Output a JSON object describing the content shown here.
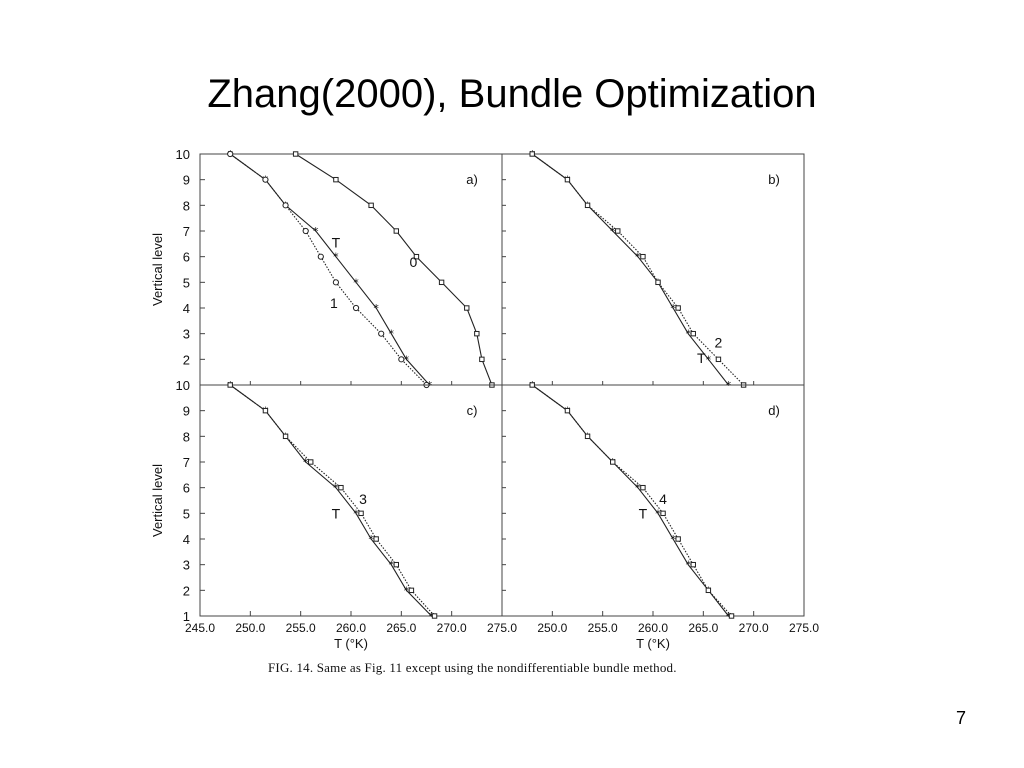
{
  "slide": {
    "title": "Zhang(2000), Bundle Optimization",
    "caption": "FIG. 14. Same as Fig. 11 except using the nondifferentiable bundle method.",
    "page_number": "7"
  },
  "chart_data": [
    {
      "type": "line",
      "panel_label": "a)",
      "ylabel": "Vertical level",
      "xlim": [
        245.0,
        275.0
      ],
      "ylim": [
        2,
        10
      ],
      "y_ticks": [
        10,
        9,
        8,
        7,
        6,
        5,
        4,
        3,
        2
      ],
      "series": [
        {
          "name": "T",
          "marker": "star",
          "style": "solid",
          "x": [
            248.0,
            251.5,
            253.5,
            256.5,
            258.5,
            260.5,
            262.5,
            264.0,
            265.5,
            267.8
          ],
          "y": [
            10,
            9,
            8,
            7,
            6,
            5,
            4,
            3,
            2,
            1
          ]
        },
        {
          "name": "0",
          "marker": "square",
          "style": "solid",
          "x": [
            254.5,
            258.5,
            262.0,
            264.5,
            266.5,
            269.0,
            271.5,
            272.5,
            273.0,
            274.0
          ],
          "y": [
            10,
            9,
            8,
            7,
            6,
            5,
            4,
            3,
            2,
            1
          ]
        },
        {
          "name": "1",
          "marker": "circle",
          "style": "dotted",
          "x": [
            248.0,
            251.5,
            253.5,
            255.5,
            257.0,
            258.5,
            260.5,
            263.0,
            265.0,
            267.5
          ],
          "y": [
            10,
            9,
            8,
            7,
            6,
            5,
            4,
            3,
            2,
            1
          ]
        }
      ]
    },
    {
      "type": "line",
      "panel_label": "b)",
      "xlim": [
        245.0,
        275.0
      ],
      "ylim": [
        2,
        10
      ],
      "series": [
        {
          "name": "T",
          "marker": "star",
          "style": "solid",
          "x": [
            248.0,
            251.5,
            253.5,
            256.0,
            258.5,
            260.5,
            262.0,
            263.5,
            265.5,
            267.5
          ],
          "y": [
            10,
            9,
            8,
            7,
            6,
            5,
            4,
            3,
            2,
            1
          ]
        },
        {
          "name": "2",
          "marker": "square",
          "style": "dotted",
          "x": [
            248.0,
            251.5,
            253.5,
            256.5,
            259.0,
            260.5,
            262.5,
            264.0,
            266.5,
            269.0
          ],
          "y": [
            10,
            9,
            8,
            7,
            6,
            5,
            4,
            3,
            2,
            1
          ]
        }
      ]
    },
    {
      "type": "line",
      "panel_label": "c)",
      "xlabel": "T (°K)",
      "ylabel": "Vertical level",
      "xlim": [
        245.0,
        275.0
      ],
      "ylim": [
        1,
        10
      ],
      "y_ticks": [
        10,
        9,
        8,
        7,
        6,
        5,
        4,
        3,
        2,
        1
      ],
      "x_ticks": [
        "245.0",
        "250.0",
        "255.0",
        "260.0",
        "265.0",
        "270.0",
        "275.0"
      ],
      "series": [
        {
          "name": "T",
          "marker": "star",
          "style": "solid",
          "x": [
            248.0,
            251.5,
            253.5,
            255.5,
            258.5,
            260.5,
            262.0,
            264.0,
            265.5,
            268.0
          ],
          "y": [
            10,
            9,
            8,
            7,
            6,
            5,
            4,
            3,
            2,
            1
          ]
        },
        {
          "name": "3",
          "marker": "square",
          "style": "dotted",
          "x": [
            248.0,
            251.5,
            253.5,
            256.0,
            259.0,
            261.0,
            262.5,
            264.5,
            266.0,
            268.3
          ],
          "y": [
            10,
            9,
            8,
            7,
            6,
            5,
            4,
            3,
            2,
            1
          ]
        }
      ]
    },
    {
      "type": "line",
      "panel_label": "d)",
      "xlabel": "T (°K)",
      "xlim": [
        245.0,
        275.0
      ],
      "ylim": [
        1,
        10
      ],
      "x_ticks": [
        "250.0",
        "255.0",
        "260.0",
        "265.0",
        "270.0",
        "275.0"
      ],
      "series": [
        {
          "name": "T",
          "marker": "star",
          "style": "solid",
          "x": [
            248.0,
            251.5,
            253.5,
            256.0,
            258.5,
            260.5,
            262.0,
            263.5,
            265.5,
            267.5
          ],
          "y": [
            10,
            9,
            8,
            7,
            6,
            5,
            4,
            3,
            2,
            1
          ]
        },
        {
          "name": "4",
          "marker": "square",
          "style": "dotted",
          "x": [
            248.0,
            251.5,
            253.5,
            256.0,
            259.0,
            261.0,
            262.5,
            264.0,
            265.5,
            267.8
          ],
          "y": [
            10,
            9,
            8,
            7,
            6,
            5,
            4,
            3,
            2,
            1
          ]
        }
      ]
    }
  ]
}
